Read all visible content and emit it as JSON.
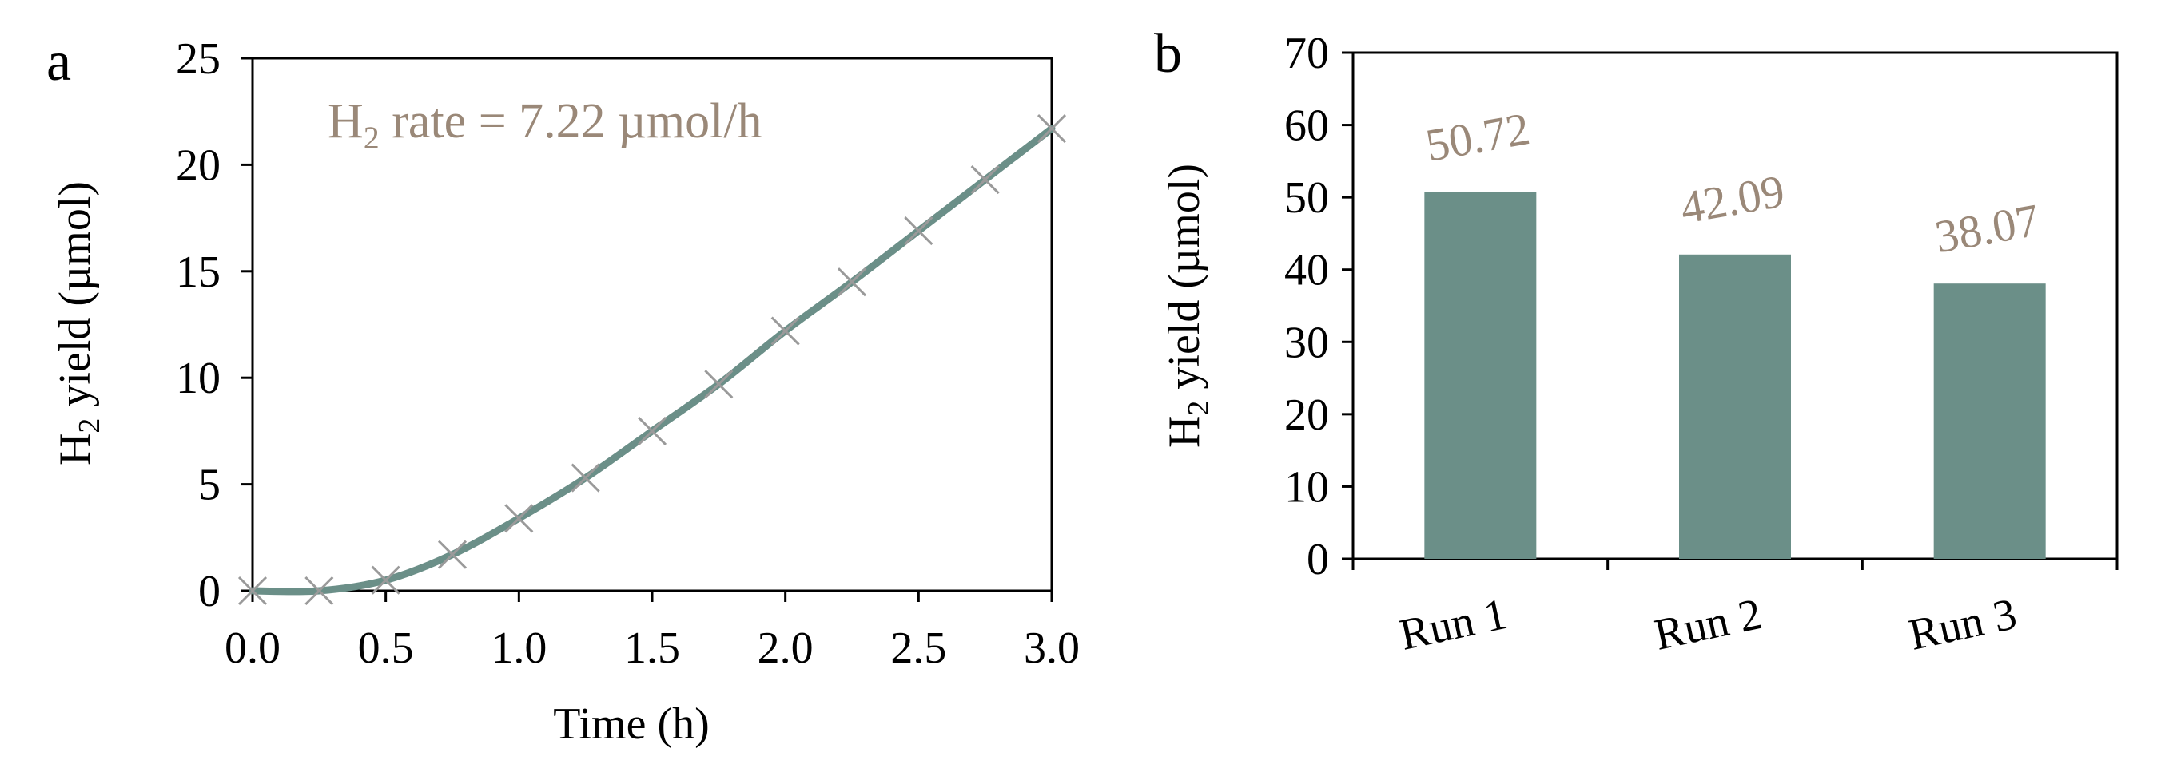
{
  "chart_data": [
    {
      "panel": "a",
      "type": "line",
      "xlabel": "Time (h)",
      "ylabel_main": "H",
      "ylabel_sub": "2",
      "ylabel_rest": " yield (µmol)",
      "annotation_main": "H",
      "annotation_sub": "2",
      "annotation_rest": " rate = 7.22 µmol/h",
      "xlim": [
        0,
        3
      ],
      "ylim": [
        0,
        25
      ],
      "xticks": [
        "0.0",
        "0.5",
        "1.0",
        "1.5",
        "2.0",
        "2.5",
        "3.0"
      ],
      "yticks": [
        "0",
        "5",
        "10",
        "15",
        "20",
        "25"
      ],
      "series": [
        {
          "name": "H2 yield",
          "x": [
            0,
            0.25,
            0.5,
            0.75,
            1.0,
            1.25,
            1.5,
            1.75,
            2.0,
            2.25,
            2.5,
            2.75,
            3.0
          ],
          "y": [
            0,
            0,
            0.5,
            1.7,
            3.4,
            5.3,
            7.5,
            9.7,
            12.2,
            14.5,
            16.9,
            19.3,
            21.7
          ]
        }
      ],
      "colors": {
        "line": "#6b8f88",
        "marker": "#9a9a9a",
        "annotation": "#9a8878"
      }
    },
    {
      "panel": "b",
      "type": "bar",
      "categories": [
        "Run 1",
        "Run 2",
        "Run 3"
      ],
      "values": [
        50.72,
        42.09,
        38.07
      ],
      "data_labels": [
        "50.72",
        "42.09",
        "38.07"
      ],
      "ylabel_main": "H",
      "ylabel_sub": "2",
      "ylabel_rest": " yield (µmol)",
      "ylim": [
        0,
        70
      ],
      "yticks": [
        "0",
        "10",
        "20",
        "30",
        "40",
        "50",
        "60",
        "70"
      ],
      "colors": {
        "bar": "#6b8f88",
        "label": "#9a8878"
      }
    }
  ]
}
